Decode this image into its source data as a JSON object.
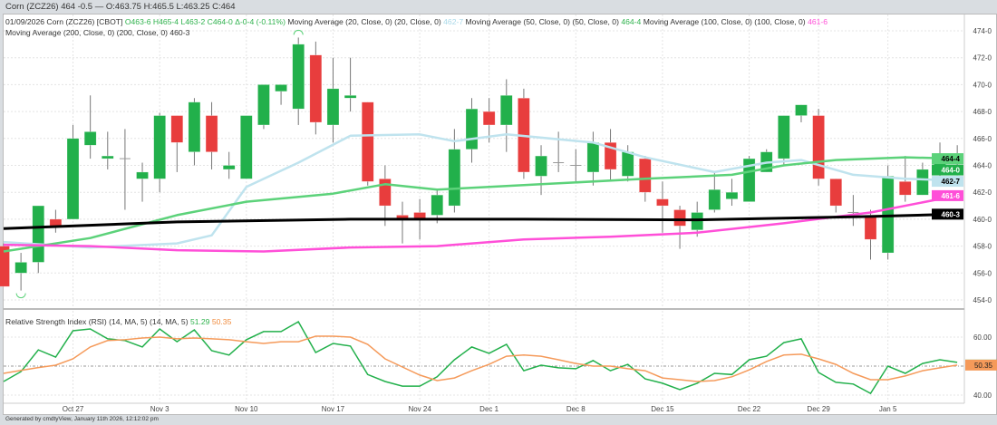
{
  "topbar": {
    "title": "Corn (ZCZ26) 464 -0.5 — O:463.75 H:465.5 L:463.25 C:464"
  },
  "legend": {
    "date_symbol": "01/09/2026 Corn (ZCZ26) [CBOT]",
    "open": "O463-6",
    "high": "H465-4",
    "low": "L463-2",
    "close": "C464-0",
    "change": "Δ-0-4 (-0.11%)",
    "ma20_label": "Moving Average (20, Close, 0) (20, Close, 0)",
    "ma20_value": "462-7",
    "ma50_label": "Moving Average (50, Close, 0) (50, Close, 0)",
    "ma50_value": "464-4",
    "ma100_label": "Moving Average (100, Close, 0) (100, Close, 0)",
    "ma100_value": "461-6",
    "ma200_label": "Moving Average (200, Close, 0) (200, Close, 0)",
    "ma200_value": "460-3"
  },
  "rsi_legend": {
    "label": "Relative Strength Index (RSI) (14, MA, 5) (14, MA, 5)",
    "rsi_value": "51.29",
    "ma_value": "50.35"
  },
  "footer": "Generated by cmdtyView, January 11th 2026, 12:12:02 pm",
  "colors": {
    "up": "#22b04b",
    "down": "#e83d3d",
    "ma20": "#bfe3ee",
    "ma50": "#5cd27a",
    "ma100": "#ff4fd8",
    "ma200": "#000000",
    "rsi": "#22b04b",
    "rsi_ma": "#f59a5a"
  },
  "chart_data": [
    {
      "type": "candlestick",
      "price_axis": {
        "ylim": [
          453.5,
          475
        ],
        "ticks": [
          "474-0",
          "472-0",
          "470-0",
          "468-0",
          "466-0",
          "464-0",
          "462-0",
          "460-0",
          "458-0",
          "456-0",
          "454-0"
        ],
        "tick_values": [
          474,
          472,
          470,
          468,
          466,
          464,
          462,
          460,
          458,
          456,
          454
        ]
      },
      "x_tick_labels": [
        {
          "date": "Oct 27",
          "label": "Oct 27"
        },
        {
          "date": "Nov 3",
          "label": "Nov 3"
        },
        {
          "date": "Nov 10",
          "label": "Nov 10"
        },
        {
          "date": "Nov 17",
          "label": "Nov 17"
        },
        {
          "date": "Nov 24",
          "label": "Nov 24"
        },
        {
          "date": "Dec 1",
          "label": "Dec 1"
        },
        {
          "date": "Dec 8",
          "label": "Dec 8"
        },
        {
          "date": "Dec 15",
          "label": "Dec 15"
        },
        {
          "date": "Dec 22",
          "label": "Dec 22"
        },
        {
          "date": "Dec 29",
          "label": "Dec 29"
        },
        {
          "date": "Jan 5",
          "label": "Jan 5"
        }
      ],
      "grid": true,
      "dates": [
        "Oct 21",
        "Oct 22",
        "Oct 23",
        "Oct 24",
        "Oct 27",
        "Oct 28",
        "Oct 29",
        "Oct 30",
        "Oct 31",
        "Nov 3",
        "Nov 4",
        "Nov 5",
        "Nov 6",
        "Nov 7",
        "Nov 10",
        "Nov 11",
        "Nov 12",
        "Nov 13",
        "Nov 14",
        "Nov 17",
        "Nov 18",
        "Nov 19",
        "Nov 20",
        "Nov 21",
        "Nov 24",
        "Nov 25",
        "Nov 26",
        "Nov 28",
        "Dec 1",
        "Dec 2",
        "Dec 3",
        "Dec 4",
        "Dec 5",
        "Dec 8",
        "Dec 9",
        "Dec 10",
        "Dec 11",
        "Dec 12",
        "Dec 15",
        "Dec 16",
        "Dec 17",
        "Dec 18",
        "Dec 19",
        "Dec 22",
        "Dec 23",
        "Dec 24",
        "Dec 26",
        "Dec 29",
        "Dec 30",
        "Dec 31",
        "Jan 2",
        "Jan 5",
        "Jan 6",
        "Jan 7",
        "Jan 8",
        "Jan 9"
      ],
      "ohlc": [
        [
          458.0,
          458.2,
          455.0,
          455.0
        ],
        [
          456.0,
          457.5,
          454.7,
          456.8
        ],
        [
          456.8,
          461.0,
          456.0,
          461.0
        ],
        [
          460.0,
          460.7,
          459.0,
          459.5
        ],
        [
          460.0,
          467.0,
          460.0,
          466.0
        ],
        [
          465.5,
          469.2,
          464.5,
          466.5
        ],
        [
          464.5,
          466.5,
          463.7,
          464.7
        ],
        [
          464.5,
          466.7,
          460.7,
          464.5
        ],
        [
          463.0,
          464.2,
          461.3,
          463.5
        ],
        [
          463.0,
          467.9,
          462.0,
          467.7
        ],
        [
          467.7,
          467.7,
          463.5,
          465.7
        ],
        [
          465.0,
          469.0,
          464.0,
          468.7
        ],
        [
          467.7,
          468.7,
          463.7,
          465.0
        ],
        [
          463.7,
          465.0,
          463.0,
          464.0
        ],
        [
          463.0,
          467.7,
          463.0,
          467.7
        ],
        [
          467.0,
          470.0,
          466.7,
          470.0
        ],
        [
          469.5,
          470.0,
          468.5,
          470.0
        ],
        [
          468.2,
          473.5,
          467.0,
          473.0
        ],
        [
          472.2,
          473.2,
          466.3,
          467.2
        ],
        [
          467.0,
          472.0,
          465.7,
          469.7
        ],
        [
          469.0,
          472.0,
          468.0,
          469.2
        ],
        [
          468.7,
          468.7,
          462.5,
          462.8
        ],
        [
          463.0,
          464.0,
          459.5,
          461.0
        ],
        [
          460.3,
          461.3,
          458.2,
          460.0
        ],
        [
          460.5,
          461.5,
          458.5,
          460.0
        ],
        [
          460.3,
          462.2,
          459.7,
          461.8
        ],
        [
          461.0,
          466.7,
          460.5,
          465.2
        ],
        [
          465.2,
          469.0,
          464.2,
          468.2
        ],
        [
          468.0,
          469.0,
          465.7,
          467.0
        ],
        [
          467.0,
          470.4,
          465.0,
          469.2
        ],
        [
          469.0,
          469.7,
          463.0,
          463.5
        ],
        [
          463.2,
          465.5,
          461.8,
          464.7
        ],
        [
          464.2,
          466.5,
          463.5,
          464.2
        ],
        [
          464.0,
          465.2,
          462.8,
          464.0
        ],
        [
          463.5,
          466.5,
          462.5,
          465.7
        ],
        [
          465.7,
          466.7,
          462.8,
          463.7
        ],
        [
          463.2,
          465.5,
          462.8,
          465.0
        ],
        [
          464.5,
          464.7,
          461.3,
          462.0
        ],
        [
          461.5,
          462.8,
          459.0,
          461.0
        ],
        [
          460.7,
          461.0,
          457.8,
          459.5
        ],
        [
          459.2,
          461.3,
          458.7,
          460.5
        ],
        [
          460.7,
          463.5,
          460.5,
          462.2
        ],
        [
          461.5,
          463.0,
          461.0,
          462.0
        ],
        [
          461.3,
          464.7,
          461.3,
          464.5
        ],
        [
          463.5,
          465.2,
          463.5,
          465.0
        ],
        [
          464.5,
          467.7,
          464.0,
          467.7
        ],
        [
          467.7,
          468.5,
          467.2,
          468.5
        ],
        [
          467.7,
          468.2,
          462.5,
          463.0
        ],
        [
          463.0,
          463.0,
          460.5,
          461.0
        ],
        [
          460.5,
          461.8,
          459.5,
          460.5
        ],
        [
          460.3,
          460.7,
          457.0,
          458.5
        ],
        [
          457.5,
          464.0,
          457.0,
          463.2
        ],
        [
          462.8,
          464.7,
          461.3,
          461.8
        ],
        [
          461.8,
          464.2,
          461.8,
          463.7
        ],
        [
          463.5,
          465.7,
          463.2,
          464.5
        ],
        [
          463.75,
          465.5,
          463.25,
          464.0
        ]
      ],
      "moving_averages": [
        {
          "name": "MA20",
          "color_key": "ma20",
          "points": [
            [
              "Oct 21",
              458.3
            ],
            [
              "Oct 28",
              457.9
            ],
            [
              "Nov 4",
              458.2
            ],
            [
              "Nov 6",
              458.8
            ],
            [
              "Nov 10",
              462.4
            ],
            [
              "Nov 13",
              464.2
            ],
            [
              "Nov 18",
              466.2
            ],
            [
              "Nov 24",
              466.3
            ],
            [
              "Nov 26",
              465.8
            ],
            [
              "Dec 2",
              466.3
            ],
            [
              "Dec 9",
              465.7
            ],
            [
              "Dec 12",
              464.6
            ],
            [
              "Dec 18",
              463.5
            ],
            [
              "Dec 23",
              464.2
            ],
            [
              "Dec 26",
              464.4
            ],
            [
              "Dec 31",
              463.3
            ],
            [
              "Jan 6",
              463.0
            ],
            [
              "Jan 9",
              462.875
            ]
          ]
        },
        {
          "name": "MA50",
          "color_key": "ma50",
          "points": [
            [
              "Oct 21",
              457.6
            ],
            [
              "Oct 28",
              458.6
            ],
            [
              "Nov 4",
              460.3
            ],
            [
              "Nov 10",
              461.3
            ],
            [
              "Nov 17",
              461.9
            ],
            [
              "Nov 20",
              462.6
            ],
            [
              "Nov 25",
              462.2
            ],
            [
              "Dec 1",
              462.4
            ],
            [
              "Dec 4",
              462.6
            ],
            [
              "Dec 12",
              463.0
            ],
            [
              "Dec 19",
              463.3
            ],
            [
              "Dec 24",
              464.0
            ],
            [
              "Dec 30",
              464.4
            ],
            [
              "Jan 6",
              464.6
            ],
            [
              "Jan 9",
              464.5
            ]
          ]
        },
        {
          "name": "MA100",
          "color_key": "ma100",
          "points": [
            [
              "Oct 21",
              458.1
            ],
            [
              "Oct 28",
              458.0
            ],
            [
              "Nov 4",
              457.7
            ],
            [
              "Nov 11",
              457.6
            ],
            [
              "Nov 18",
              457.9
            ],
            [
              "Nov 25",
              458.0
            ],
            [
              "Dec 3",
              458.5
            ],
            [
              "Dec 10",
              458.7
            ],
            [
              "Dec 17",
              459.0
            ],
            [
              "Dec 24",
              459.7
            ],
            [
              "Jan 2",
              460.5
            ],
            [
              "Jan 9",
              461.75
            ]
          ]
        },
        {
          "name": "MA200",
          "color_key": "ma200",
          "points": [
            [
              "Oct 21",
              459.3
            ],
            [
              "Nov 4",
              459.8
            ],
            [
              "Nov 18",
              460.0
            ],
            [
              "Dec 3",
              460.0
            ],
            [
              "Dec 17",
              459.95
            ],
            [
              "Jan 2",
              460.2
            ],
            [
              "Jan 9",
              460.375
            ]
          ]
        }
      ],
      "last_value_labels": [
        {
          "text": "464-4",
          "value": 464.5,
          "color_key": "ma50",
          "text_color": "#000"
        },
        {
          "text": "464-0",
          "value": 464.0,
          "color_key": "up",
          "text_color": "#fff"
        },
        {
          "text": "462-7",
          "value": 462.875,
          "color_key": "ma20",
          "text_color": "#000"
        },
        {
          "text": "461-6",
          "value": 461.75,
          "color_key": "ma100",
          "text_color": "#fff"
        },
        {
          "text": "460-3",
          "value": 460.375,
          "color_key": "ma200",
          "text_color": "#fff"
        }
      ],
      "markers": [
        {
          "date": "Nov 13",
          "at": "high"
        },
        {
          "date": "Oct 22",
          "at": "low"
        }
      ]
    },
    {
      "type": "line",
      "title": "Relative Strength Index (RSI) (14, MA, 5)",
      "ylim": [
        36,
        66
      ],
      "ticks": [
        {
          "value": 60,
          "label": "60.00"
        },
        {
          "value": 40,
          "label": "40.00"
        }
      ],
      "reference_line": 50,
      "series": [
        {
          "name": "RSI",
          "color_key": "rsi",
          "values": [
            44.7,
            48.1,
            55.6,
            53.1,
            62.2,
            62.8,
            59.4,
            58.8,
            56.6,
            62.8,
            58.4,
            62.5,
            55.3,
            53.8,
            59.1,
            61.9,
            61.9,
            65.3,
            54.7,
            57.8,
            56.9,
            47.1,
            44.7,
            43.1,
            43.1,
            46.3,
            52.2,
            56.6,
            54.4,
            57.5,
            48.4,
            50.3,
            49.4,
            49.1,
            51.9,
            48.4,
            50.6,
            45.6,
            44.1,
            41.9,
            44.1,
            47.5,
            47.1,
            52.2,
            53.4,
            58.1,
            59.4,
            47.8,
            44.4,
            43.8,
            40.6,
            50.0,
            47.5,
            50.9,
            52.2,
            51.29
          ]
        },
        {
          "name": "MA",
          "color_key": "rsi_ma",
          "values": [
            47.5,
            48.5,
            49.5,
            50.3,
            52.5,
            56.6,
            58.8,
            59.1,
            59.7,
            60.0,
            59.4,
            59.7,
            59.4,
            59.1,
            58.4,
            57.8,
            58.4,
            58.4,
            60.3,
            60.3,
            60.0,
            57.5,
            52.5,
            49.7,
            46.9,
            45.0,
            45.9,
            48.4,
            50.6,
            53.4,
            53.8,
            53.4,
            52.2,
            50.9,
            50.0,
            50.0,
            49.1,
            48.4,
            45.9,
            45.3,
            44.7,
            45.0,
            46.3,
            48.7,
            51.6,
            53.8,
            54.1,
            52.5,
            50.6,
            47.5,
            45.3,
            45.3,
            46.6,
            48.4,
            49.4,
            50.35
          ]
        }
      ],
      "last_value_label": {
        "text": "50.35",
        "color_key": "rsi_ma"
      }
    }
  ]
}
